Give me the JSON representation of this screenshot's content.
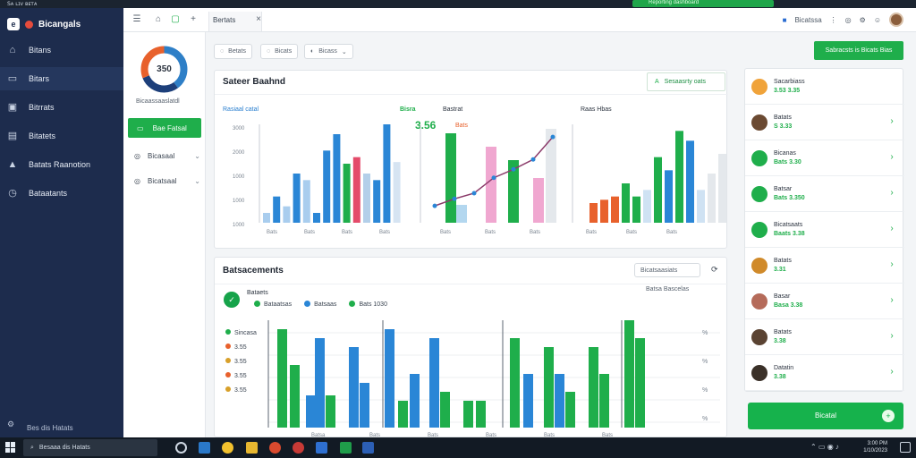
{
  "topbar": {
    "title": "Sᴀ ʟɪᴠ ʙᴇᴛᴀ",
    "button": "Reporting dashboard"
  },
  "app": {
    "brand": "Bicangals"
  },
  "nav": {
    "items": [
      {
        "label": "Bitans",
        "icon": "home-icon"
      },
      {
        "label": "Bitars",
        "icon": "chat-icon"
      },
      {
        "label": "Bitrrats",
        "icon": "briefcase-icon"
      },
      {
        "label": "Bitatets",
        "icon": "calendar-icon"
      },
      {
        "label": "Batats Raanotion",
        "icon": "chart-icon"
      },
      {
        "label": "Bataatants",
        "icon": "clock-icon"
      }
    ],
    "footer": "Bes dis Hatats"
  },
  "header": {
    "tab": "Bertats",
    "right_label": "Bicatssa"
  },
  "panel1": {
    "donut_value": "350",
    "caption": "Bicaassaaslatdl",
    "button": "Bae Fatsal",
    "items": [
      "Bicasaal",
      "Bicatsaal"
    ]
  },
  "filters": [
    "Betats",
    "Bicats",
    "Bicass"
  ],
  "summary": {
    "title": "Sateer Baahnd",
    "action": "Sesaasrty oats",
    "chart1": {
      "title": "Rasiaal catal",
      "yticks": [
        "3000",
        "2000",
        "1000",
        "1000",
        "1000"
      ],
      "xticks": [
        "Bats",
        "Bats",
        "Bats",
        "Bats"
      ]
    },
    "chart2": {
      "title": "Bisra",
      "title2": "Bastrat",
      "value": "3.56",
      "value2": "Bats",
      "xticks": [
        "Bats",
        "Bats",
        "Bats"
      ]
    },
    "chart3": {
      "title": "Raas Hbas",
      "xticks": [
        "Bats",
        "Bats",
        "Bats"
      ]
    }
  },
  "performance": {
    "title": "Batsacements",
    "search": "Bicatsaasiats",
    "sub_title": "Bataets",
    "dropdown": "Batsa Bascelas",
    "legend": [
      "Bataatsas",
      "Batsaas",
      "Bats 1030"
    ],
    "left_labels": [
      "Sincasa",
      "3.55",
      "3.55",
      "3.55",
      "3.55"
    ],
    "xticks": [
      "Batsa",
      "Bats",
      "Bats",
      "Bats",
      "Bats",
      "Bats"
    ]
  },
  "side": {
    "add_button": "Sabracsts is Bicats Bias",
    "items": [
      {
        "name": "Sacarbiass",
        "value": "3.53 3.35",
        "color": "#f0a33a"
      },
      {
        "name": "Batats",
        "value": "S 3.33",
        "color": "#6b4a32"
      },
      {
        "name": "Bicanas",
        "value": "Bats 3.30",
        "color": "#1fae4b"
      },
      {
        "name": "Batsar",
        "value": "Bats 3.350",
        "color": "#1fae4b"
      },
      {
        "name": "Bicatsaats",
        "value": "Baats 3.38",
        "color": "#1fae4b"
      },
      {
        "name": "Batats",
        "value": "3.31",
        "color": "#d08a2a"
      },
      {
        "name": "Basar",
        "value": "Basa 3.38",
        "color": "#b56b5a"
      },
      {
        "name": "Batats",
        "value": "3.38",
        "color": "#5a4332"
      },
      {
        "name": "Datatin",
        "value": "3.38",
        "color": "#3a3028"
      }
    ],
    "bottom_button": "Bicatal"
  },
  "taskbar": {
    "search": "Besaaa dis Hatats",
    "clock1": "3:00 PM",
    "clock2": "1/10/2023"
  },
  "chart_data": [
    {
      "type": "bar",
      "title": "Rasiaal catal",
      "categories": [
        "1",
        "2",
        "3",
        "4",
        "5",
        "6",
        "7",
        "8",
        "9",
        "10",
        "11",
        "12",
        "13",
        "14"
      ],
      "series": [
        {
          "name": "",
          "values": [
            300,
            800,
            500,
            1500,
            1300,
            300,
            2200,
            2700,
            1800,
            2000,
            1500,
            1300,
            3000,
            1850
          ]
        }
      ]
    },
    {
      "type": "line",
      "title": "Bisra",
      "values": [
        120,
        170,
        210,
        320,
        380,
        450,
        610
      ]
    },
    {
      "type": "bar",
      "title": "Raas Hbas",
      "categories": [
        "1",
        "2",
        "3",
        "4",
        "5",
        "6",
        "7",
        "8",
        "9",
        "10",
        "11",
        "12",
        "13"
      ],
      "values": [
        600,
        700,
        800,
        1200,
        800,
        1000,
        2000,
        1600,
        2800,
        2500,
        1000,
        1500,
        2100
      ]
    }
  ]
}
